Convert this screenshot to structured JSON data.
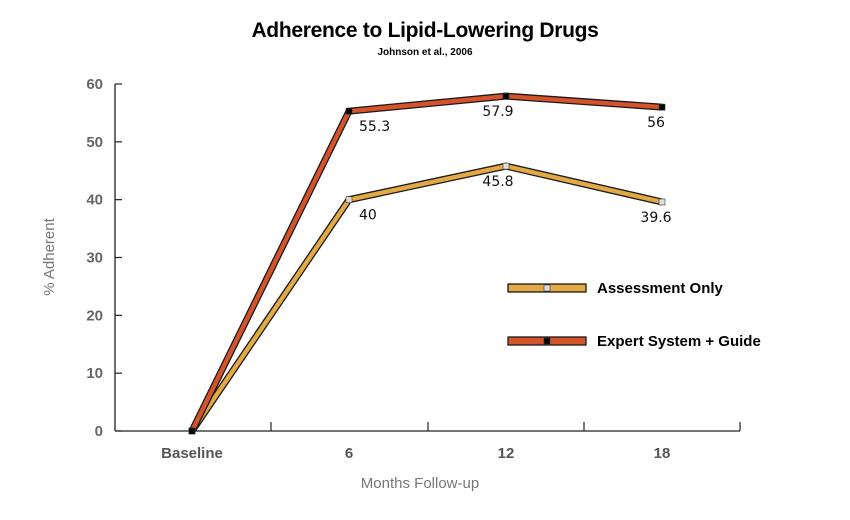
{
  "chart_data": {
    "type": "line",
    "title": "Adherence to Lipid-Lowering Drugs",
    "subtitle": "Johnson et al., 2006",
    "xlabel": "Months Follow-up",
    "ylabel": "% Adherent",
    "categories": [
      "Baseline",
      "6",
      "12",
      "18"
    ],
    "ylim": [
      0,
      60
    ],
    "yticks": [
      "0",
      "10",
      "20",
      "30",
      "40",
      "50",
      "60"
    ],
    "grid": false,
    "legend_position": "right",
    "series": [
      {
        "name": "Assessment Only",
        "values": [
          0,
          40,
          45.8,
          39.6
        ],
        "labels": [
          "",
          "40",
          "45.8",
          "39.6"
        ],
        "color": "#E2A945",
        "marker_color": "#dddddd"
      },
      {
        "name": "Expert System + Guide",
        "values": [
          0,
          55.3,
          57.9,
          56
        ],
        "labels": [
          "",
          "55.3",
          "57.9",
          "56"
        ],
        "color": "#D4532A",
        "marker_color": "#000000"
      }
    ]
  }
}
